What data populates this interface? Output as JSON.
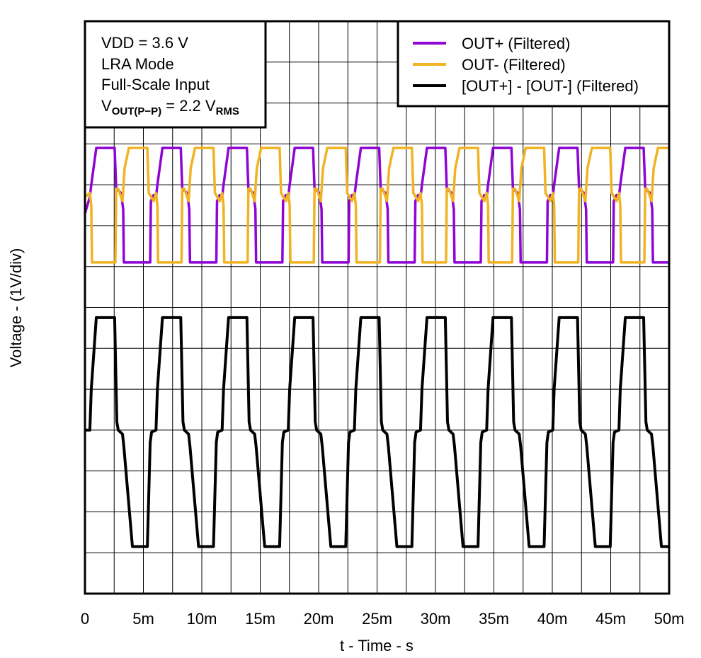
{
  "chart_data": {
    "type": "line",
    "title": "",
    "xlabel": "t - Time - s",
    "ylabel": "Voltage - (1V/div)",
    "xlim": [
      0,
      50
    ],
    "ylim": [
      0,
      14
    ],
    "x_ticks": [
      0,
      5,
      10,
      15,
      20,
      25,
      30,
      35,
      40,
      45,
      50
    ],
    "x_tick_labels": [
      "0",
      "5m",
      "10m",
      "15m",
      "20m",
      "25m",
      "30m",
      "35m",
      "40m",
      "45m",
      "50m"
    ],
    "grid": {
      "on": true,
      "x_divisions": 20,
      "y_divisions": 14
    },
    "legend_placement": "top-right",
    "annotation": {
      "line1": "VDD = 3.6 V",
      "line2": "LRA Mode",
      "line3": "Full-Scale Input",
      "line4": {
        "v": "V",
        "sub": "OUT(P−P)",
        "mid": " = 2.2 V",
        "sub2": "RMS"
      }
    },
    "series": [
      {
        "name": "OUT+ (Filtered)",
        "color": "#8E05D4",
        "points": [
          [
            0,
            9.3
          ],
          [
            0.42,
            9.7
          ],
          [
            0.54,
            10.0
          ],
          [
            0.97,
            10.9
          ],
          [
            2.54,
            10.9
          ],
          [
            2.67,
            9.9
          ],
          [
            3.09,
            9.8
          ],
          [
            3.27,
            9.4
          ],
          [
            3.33,
            8.1
          ],
          [
            5.58,
            8.1
          ],
          [
            5.64,
            9.6
          ],
          [
            5.88,
            9.75
          ],
          [
            6.08,
            9.7
          ],
          [
            6.2,
            10.0
          ],
          [
            6.63,
            10.9
          ],
          [
            8.2,
            10.9
          ],
          [
            8.33,
            9.9
          ],
          [
            8.75,
            9.8
          ],
          [
            8.93,
            9.4
          ],
          [
            8.99,
            8.1
          ],
          [
            11.24,
            8.1
          ],
          [
            11.3,
            9.6
          ],
          [
            11.54,
            9.75
          ],
          [
            11.74,
            9.7
          ],
          [
            11.86,
            10.0
          ],
          [
            12.29,
            10.9
          ],
          [
            13.86,
            10.9
          ],
          [
            13.99,
            9.9
          ],
          [
            14.41,
            9.8
          ],
          [
            14.59,
            9.4
          ],
          [
            14.65,
            8.1
          ],
          [
            16.9,
            8.1
          ],
          [
            16.96,
            9.6
          ],
          [
            17.2,
            9.75
          ],
          [
            17.4,
            9.7
          ],
          [
            17.52,
            10.0
          ],
          [
            17.95,
            10.9
          ],
          [
            19.52,
            10.9
          ],
          [
            19.65,
            9.9
          ],
          [
            20.07,
            9.8
          ],
          [
            20.25,
            9.4
          ],
          [
            20.31,
            8.1
          ],
          [
            22.56,
            8.1
          ],
          [
            22.62,
            9.6
          ],
          [
            22.86,
            9.75
          ],
          [
            23.06,
            9.7
          ],
          [
            23.18,
            10.0
          ],
          [
            23.61,
            10.9
          ],
          [
            25.18,
            10.9
          ],
          [
            25.31,
            9.9
          ],
          [
            25.73,
            9.8
          ],
          [
            25.91,
            9.4
          ],
          [
            25.97,
            8.1
          ],
          [
            28.22,
            8.1
          ],
          [
            28.28,
            9.6
          ],
          [
            28.52,
            9.75
          ],
          [
            28.72,
            9.7
          ],
          [
            28.84,
            10.0
          ],
          [
            29.27,
            10.9
          ],
          [
            30.84,
            10.9
          ],
          [
            30.97,
            9.9
          ],
          [
            31.39,
            9.8
          ],
          [
            31.57,
            9.4
          ],
          [
            31.63,
            8.1
          ],
          [
            33.88,
            8.1
          ],
          [
            33.94,
            9.6
          ],
          [
            34.18,
            9.75
          ],
          [
            34.38,
            9.7
          ],
          [
            34.5,
            10.0
          ],
          [
            34.93,
            10.9
          ],
          [
            36.5,
            10.9
          ],
          [
            36.63,
            9.9
          ],
          [
            37.05,
            9.8
          ],
          [
            37.23,
            9.4
          ],
          [
            37.29,
            8.1
          ],
          [
            39.54,
            8.1
          ],
          [
            39.6,
            9.6
          ],
          [
            39.84,
            9.75
          ],
          [
            40.04,
            9.7
          ],
          [
            40.16,
            10.0
          ],
          [
            40.59,
            10.9
          ],
          [
            42.16,
            10.9
          ],
          [
            42.29,
            9.9
          ],
          [
            42.71,
            9.8
          ],
          [
            42.89,
            9.4
          ],
          [
            42.95,
            8.1
          ],
          [
            45.2,
            8.1
          ],
          [
            45.26,
            9.6
          ],
          [
            45.5,
            9.75
          ],
          [
            45.7,
            9.7
          ],
          [
            45.82,
            10.0
          ],
          [
            46.25,
            10.9
          ],
          [
            47.82,
            10.9
          ],
          [
            47.95,
            9.9
          ],
          [
            48.37,
            9.8
          ],
          [
            48.55,
            9.4
          ],
          [
            48.61,
            8.1
          ],
          [
            50,
            8.1
          ]
        ]
      },
      {
        "name": "OUT- (Filtered)",
        "color": "#F0B323",
        "points": [
          [
            0,
            9.7
          ],
          [
            0.42,
            9.8
          ],
          [
            0.54,
            9.5
          ],
          [
            0.6,
            8.1
          ],
          [
            2.6,
            8.1
          ],
          [
            2.67,
            9.9
          ],
          [
            2.85,
            9.9
          ],
          [
            3.21,
            9.6
          ],
          [
            3.39,
            10.4
          ],
          [
            3.76,
            10.9
          ],
          [
            5.34,
            10.9
          ],
          [
            5.46,
            9.8
          ],
          [
            5.88,
            9.6
          ],
          [
            6.08,
            9.8
          ],
          [
            6.2,
            9.5
          ],
          [
            6.26,
            8.1
          ],
          [
            8.26,
            8.1
          ],
          [
            8.33,
            9.9
          ],
          [
            8.51,
            9.9
          ],
          [
            8.87,
            9.6
          ],
          [
            9.05,
            10.4
          ],
          [
            9.42,
            10.9
          ],
          [
            11.0,
            10.9
          ],
          [
            11.12,
            9.8
          ],
          [
            11.54,
            9.6
          ],
          [
            11.74,
            9.8
          ],
          [
            11.86,
            9.5
          ],
          [
            11.92,
            8.1
          ],
          [
            13.92,
            8.1
          ],
          [
            13.99,
            9.9
          ],
          [
            14.17,
            9.9
          ],
          [
            14.53,
            9.6
          ],
          [
            14.71,
            10.4
          ],
          [
            15.08,
            10.9
          ],
          [
            16.66,
            10.9
          ],
          [
            16.78,
            9.8
          ],
          [
            17.2,
            9.6
          ],
          [
            17.4,
            9.8
          ],
          [
            17.52,
            9.5
          ],
          [
            17.58,
            8.1
          ],
          [
            19.58,
            8.1
          ],
          [
            19.65,
            9.9
          ],
          [
            19.83,
            9.9
          ],
          [
            20.19,
            9.6
          ],
          [
            20.37,
            10.4
          ],
          [
            20.74,
            10.9
          ],
          [
            22.32,
            10.9
          ],
          [
            22.44,
            9.8
          ],
          [
            22.86,
            9.6
          ],
          [
            23.06,
            9.8
          ],
          [
            23.18,
            9.5
          ],
          [
            23.24,
            8.1
          ],
          [
            25.24,
            8.1
          ],
          [
            25.31,
            9.9
          ],
          [
            25.49,
            9.9
          ],
          [
            25.85,
            9.6
          ],
          [
            26.03,
            10.4
          ],
          [
            26.4,
            10.9
          ],
          [
            27.98,
            10.9
          ],
          [
            28.1,
            9.8
          ],
          [
            28.52,
            9.6
          ],
          [
            28.72,
            9.8
          ],
          [
            28.84,
            9.5
          ],
          [
            28.9,
            8.1
          ],
          [
            30.9,
            8.1
          ],
          [
            30.97,
            9.9
          ],
          [
            31.15,
            9.9
          ],
          [
            31.51,
            9.6
          ],
          [
            31.69,
            10.4
          ],
          [
            32.06,
            10.9
          ],
          [
            33.64,
            10.9
          ],
          [
            33.76,
            9.8
          ],
          [
            34.18,
            9.6
          ],
          [
            34.38,
            9.8
          ],
          [
            34.5,
            9.5
          ],
          [
            34.56,
            8.1
          ],
          [
            36.56,
            8.1
          ],
          [
            36.63,
            9.9
          ],
          [
            36.81,
            9.9
          ],
          [
            37.17,
            9.6
          ],
          [
            37.35,
            10.4
          ],
          [
            37.72,
            10.9
          ],
          [
            39.3,
            10.9
          ],
          [
            39.42,
            9.8
          ],
          [
            39.84,
            9.6
          ],
          [
            40.04,
            9.8
          ],
          [
            40.16,
            9.5
          ],
          [
            40.22,
            8.1
          ],
          [
            42.22,
            8.1
          ],
          [
            42.29,
            9.9
          ],
          [
            42.47,
            9.9
          ],
          [
            42.83,
            9.6
          ],
          [
            43.01,
            10.4
          ],
          [
            43.38,
            10.9
          ],
          [
            44.96,
            10.9
          ],
          [
            45.08,
            9.8
          ],
          [
            45.5,
            9.6
          ],
          [
            45.7,
            9.8
          ],
          [
            45.82,
            9.5
          ],
          [
            45.88,
            8.1
          ],
          [
            47.88,
            8.1
          ],
          [
            47.95,
            9.9
          ],
          [
            48.13,
            9.9
          ],
          [
            48.49,
            9.6
          ],
          [
            48.67,
            10.4
          ],
          [
            49.04,
            10.9
          ],
          [
            50,
            10.9
          ]
        ]
      },
      {
        "name": "[OUT+] - [OUT-] (Filtered)",
        "color": "#000000",
        "points": [
          [
            0,
            4.0
          ],
          [
            0.42,
            4.0
          ],
          [
            0.54,
            5.0
          ],
          [
            0.97,
            6.75
          ],
          [
            2.54,
            6.75
          ],
          [
            2.73,
            4.2
          ],
          [
            2.85,
            4.0
          ],
          [
            3.21,
            3.9
          ],
          [
            3.33,
            3.6
          ],
          [
            4.06,
            1.15
          ],
          [
            5.34,
            1.15
          ],
          [
            5.58,
            3.7
          ],
          [
            5.7,
            3.95
          ],
          [
            6.08,
            4.0
          ],
          [
            6.2,
            5.0
          ],
          [
            6.63,
            6.75
          ],
          [
            8.2,
            6.75
          ],
          [
            8.39,
            4.2
          ],
          [
            8.51,
            4.0
          ],
          [
            8.87,
            3.9
          ],
          [
            8.99,
            3.6
          ],
          [
            9.72,
            1.15
          ],
          [
            11.0,
            1.15
          ],
          [
            11.24,
            3.7
          ],
          [
            11.36,
            3.95
          ],
          [
            11.74,
            4.0
          ],
          [
            11.86,
            5.0
          ],
          [
            12.29,
            6.75
          ],
          [
            13.86,
            6.75
          ],
          [
            14.05,
            4.2
          ],
          [
            14.17,
            4.0
          ],
          [
            14.53,
            3.9
          ],
          [
            14.65,
            3.6
          ],
          [
            15.38,
            1.15
          ],
          [
            16.66,
            1.15
          ],
          [
            16.9,
            3.7
          ],
          [
            17.02,
            3.95
          ],
          [
            17.4,
            4.0
          ],
          [
            17.52,
            5.0
          ],
          [
            17.95,
            6.75
          ],
          [
            19.52,
            6.75
          ],
          [
            19.71,
            4.2
          ],
          [
            19.83,
            4.0
          ],
          [
            20.19,
            3.9
          ],
          [
            20.31,
            3.6
          ],
          [
            21.04,
            1.15
          ],
          [
            22.32,
            1.15
          ],
          [
            22.56,
            3.7
          ],
          [
            22.68,
            3.95
          ],
          [
            23.06,
            4.0
          ],
          [
            23.18,
            5.0
          ],
          [
            23.61,
            6.75
          ],
          [
            25.18,
            6.75
          ],
          [
            25.37,
            4.2
          ],
          [
            25.49,
            4.0
          ],
          [
            25.85,
            3.9
          ],
          [
            25.97,
            3.6
          ],
          [
            26.7,
            1.15
          ],
          [
            27.98,
            1.15
          ],
          [
            28.22,
            3.7
          ],
          [
            28.34,
            3.95
          ],
          [
            28.72,
            4.0
          ],
          [
            28.84,
            5.0
          ],
          [
            29.27,
            6.75
          ],
          [
            30.84,
            6.75
          ],
          [
            31.03,
            4.2
          ],
          [
            31.15,
            4.0
          ],
          [
            31.51,
            3.9
          ],
          [
            31.63,
            3.6
          ],
          [
            32.36,
            1.15
          ],
          [
            33.64,
            1.15
          ],
          [
            33.88,
            3.7
          ],
          [
            34.0,
            3.95
          ],
          [
            34.38,
            4.0
          ],
          [
            34.5,
            5.0
          ],
          [
            34.93,
            6.75
          ],
          [
            36.5,
            6.75
          ],
          [
            36.69,
            4.2
          ],
          [
            36.81,
            4.0
          ],
          [
            37.17,
            3.9
          ],
          [
            37.29,
            3.6
          ],
          [
            38.02,
            1.15
          ],
          [
            39.3,
            1.15
          ],
          [
            39.54,
            3.7
          ],
          [
            39.66,
            3.95
          ],
          [
            40.04,
            4.0
          ],
          [
            40.16,
            5.0
          ],
          [
            40.59,
            6.75
          ],
          [
            42.16,
            6.75
          ],
          [
            42.35,
            4.2
          ],
          [
            42.47,
            4.0
          ],
          [
            42.83,
            3.9
          ],
          [
            42.95,
            3.6
          ],
          [
            43.68,
            1.15
          ],
          [
            44.96,
            1.15
          ],
          [
            45.2,
            3.7
          ],
          [
            45.32,
            3.95
          ],
          [
            45.7,
            4.0
          ],
          [
            45.82,
            5.0
          ],
          [
            46.25,
            6.75
          ],
          [
            47.82,
            6.75
          ],
          [
            48.01,
            4.2
          ],
          [
            48.13,
            4.0
          ],
          [
            48.49,
            3.9
          ],
          [
            48.61,
            3.6
          ],
          [
            49.34,
            1.15
          ],
          [
            50,
            1.15
          ]
        ]
      }
    ]
  }
}
